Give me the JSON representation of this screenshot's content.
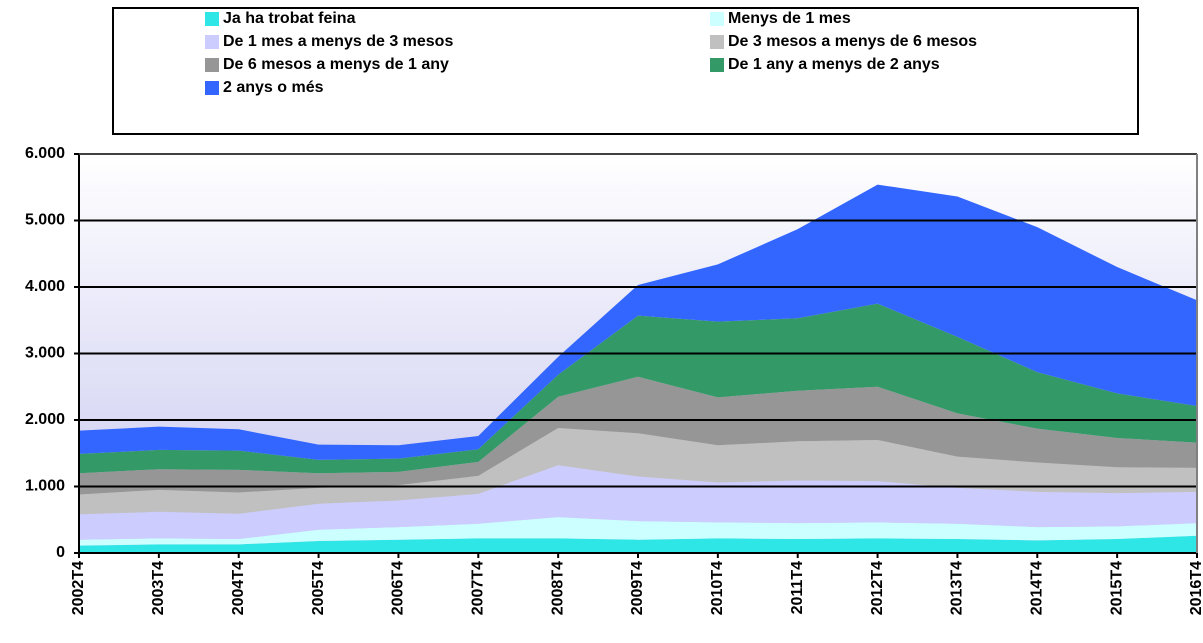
{
  "chart_data": {
    "type": "stacked_area",
    "categories": [
      "2002T4",
      "2003T4",
      "2004T4",
      "2005T4",
      "2006T4",
      "2007T4",
      "2008T4",
      "2009T4",
      "2010T4",
      "2011T4",
      "2012T4",
      "2013T4",
      "2014T4",
      "2015T4",
      "2016T4"
    ],
    "series": [
      {
        "name": "Ja ha trobat feina",
        "color": "#2ee6e6",
        "values": [
          110,
          130,
          130,
          180,
          200,
          220,
          220,
          200,
          220,
          210,
          220,
          210,
          190,
          210,
          260
        ]
      },
      {
        "name": "Menys de 1 mes",
        "color": "#ccffff",
        "values": [
          90,
          90,
          80,
          170,
          190,
          220,
          320,
          280,
          240,
          240,
          240,
          230,
          200,
          190,
          190
        ]
      },
      {
        "name": "De 1 mes a menys de 3 mesos",
        "color": "#ccccff",
        "values": [
          380,
          400,
          380,
          390,
          400,
          450,
          780,
          670,
          600,
          640,
          620,
          540,
          530,
          500,
          470
        ]
      },
      {
        "name": "De 3 mesos a menys de 6 mesos",
        "color": "#c0c0c0",
        "values": [
          300,
          330,
          320,
          240,
          230,
          270,
          560,
          650,
          560,
          590,
          620,
          470,
          440,
          390,
          360
        ]
      },
      {
        "name": "De 6 mesos a menys de 1 any",
        "color": "#969696",
        "values": [
          320,
          310,
          340,
          220,
          200,
          210,
          470,
          850,
          720,
          760,
          800,
          650,
          510,
          440,
          380
        ]
      },
      {
        "name": "De 1 any a menys de 2 anys",
        "color": "#339966",
        "values": [
          290,
          290,
          290,
          200,
          200,
          190,
          330,
          920,
          1140,
          1090,
          1250,
          1150,
          850,
          670,
          550
        ]
      },
      {
        "name": "2 anys o més",
        "color": "#3366ff",
        "values": [
          350,
          350,
          320,
          230,
          200,
          200,
          270,
          460,
          860,
          1340,
          1790,
          2110,
          2180,
          1900,
          1590
        ]
      }
    ],
    "ylim": [
      0,
      6000
    ],
    "yticks": [
      0,
      {
        "value": 1000,
        "label": "1.000"
      },
      {
        "value": 2000,
        "label": "2.000"
      },
      {
        "value": 3000,
        "label": "3.000"
      },
      {
        "value": 4000,
        "label": "4.000"
      },
      {
        "value": 5000,
        "label": "5.000"
      },
      {
        "value": 6000,
        "label": "6.000"
      }
    ],
    "grid": true
  }
}
